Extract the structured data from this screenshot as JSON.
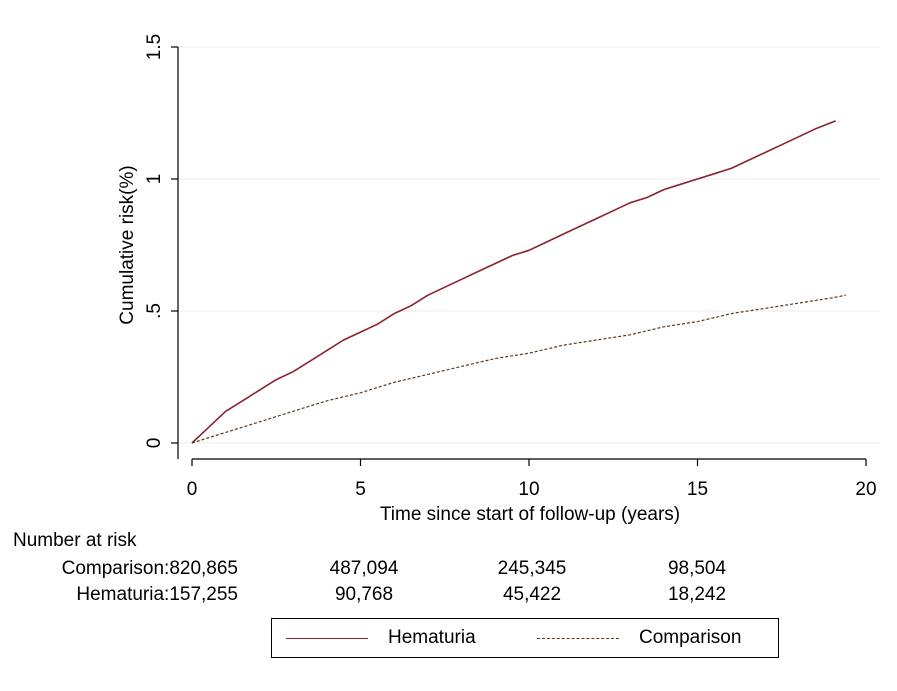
{
  "chart_data": {
    "type": "line",
    "title": "",
    "xlabel": "Time since start of follow-up (years)",
    "ylabel": "Cumulative risk(%)",
    "xlim": [
      0,
      20
    ],
    "ylim": [
      0,
      1.5
    ],
    "xticks": [
      "0",
      "5",
      "10",
      "15",
      "20"
    ],
    "yticks": [
      "0",
      ".5",
      "1",
      "1.5"
    ],
    "grid": true,
    "legend_position": "bottom",
    "series": [
      {
        "name": "Hematuria",
        "color": "#8b2232",
        "style": "solid",
        "x": [
          0,
          0.5,
          1,
          1.5,
          2,
          2.5,
          3,
          3.5,
          4,
          4.5,
          5,
          5.5,
          6,
          6.5,
          7,
          7.5,
          8,
          8.5,
          9,
          9.5,
          10,
          10.5,
          11,
          11.5,
          12,
          12.5,
          13,
          13.5,
          14,
          14.5,
          15,
          15.5,
          16,
          16.5,
          17,
          17.5,
          18,
          18.5,
          19.1
        ],
        "y": [
          0,
          0.06,
          0.12,
          0.16,
          0.2,
          0.24,
          0.27,
          0.31,
          0.35,
          0.39,
          0.42,
          0.45,
          0.49,
          0.52,
          0.56,
          0.59,
          0.62,
          0.65,
          0.68,
          0.71,
          0.73,
          0.76,
          0.79,
          0.82,
          0.85,
          0.88,
          0.91,
          0.93,
          0.96,
          0.98,
          1.0,
          1.02,
          1.04,
          1.07,
          1.1,
          1.13,
          1.16,
          1.19,
          1.22
        ]
      },
      {
        "name": "Comparison",
        "color": "#5a3a1a",
        "style": "dashed",
        "x": [
          0,
          1,
          2,
          3,
          4,
          5,
          6,
          7,
          8,
          9,
          10,
          11,
          12,
          13,
          14,
          15,
          16,
          17,
          18,
          19,
          19.4
        ],
        "y": [
          0,
          0.04,
          0.08,
          0.12,
          0.16,
          0.19,
          0.23,
          0.26,
          0.29,
          0.32,
          0.34,
          0.37,
          0.39,
          0.41,
          0.44,
          0.46,
          0.49,
          0.51,
          0.53,
          0.55,
          0.56
        ]
      }
    ]
  },
  "risk_table": {
    "title": "Number at risk",
    "rows": [
      {
        "label": "Comparison:820,865",
        "values": [
          "487,094",
          "245,345",
          "98,504"
        ]
      },
      {
        "label": "Hematuria:157,255",
        "values": [
          "90,768",
          "45,422",
          "18,242"
        ]
      }
    ]
  },
  "legend": {
    "items": [
      {
        "label": "Hematuria"
      },
      {
        "label": "Comparison"
      }
    ]
  }
}
